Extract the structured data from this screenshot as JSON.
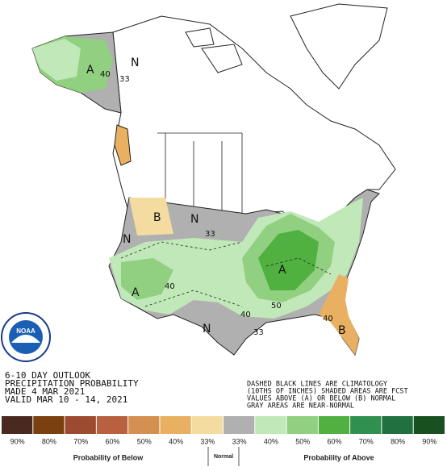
{
  "outlook": {
    "lines": [
      "6-10 DAY OUTLOOK",
      "PRECIPITATION PROBABILITY",
      "MADE  4 MAR 2021",
      "VALID  MAR 10 - 14, 2021"
    ]
  },
  "notes": [
    "DASHED BLACK LINES ARE CLIMATOLOGY",
    "(10THS OF INCHES) SHADED AREAS ARE FCST",
    "VALUES ABOVE (A) OR BELOW (B) NORMAL",
    "GRAY AREAS ARE NEAR-NORMAL"
  ],
  "logo": "NOAA",
  "map_labels": [
    "A",
    "40",
    "N",
    "33",
    "B",
    "N",
    "33",
    "N",
    "A",
    "40",
    "A",
    "50",
    "40",
    "N",
    "33",
    "40",
    "B"
  ],
  "legend": {
    "items": [
      {
        "label": "90%",
        "color": "#4a2a20"
      },
      {
        "label": "80%",
        "color": "#7a4010"
      },
      {
        "label": "70%",
        "color": "#9c4a30"
      },
      {
        "label": "60%",
        "color": "#b86040"
      },
      {
        "label": "50%",
        "color": "#d49050"
      },
      {
        "label": "40%",
        "color": "#e8b060"
      },
      {
        "label": "33%",
        "color": "#f4dca0"
      },
      {
        "label": "33%",
        "color": "#b0b0b0"
      },
      {
        "label": "40%",
        "color": "#c0e8b8"
      },
      {
        "label": "50%",
        "color": "#90d080"
      },
      {
        "label": "60%",
        "color": "#50b040"
      },
      {
        "label": "70%",
        "color": "#309050"
      },
      {
        "label": "80%",
        "color": "#207040"
      },
      {
        "label": "90%",
        "color": "#185020"
      }
    ],
    "below_label": "Probability of Below",
    "normal_label": "Normal",
    "above_label": "Probability of Above"
  }
}
